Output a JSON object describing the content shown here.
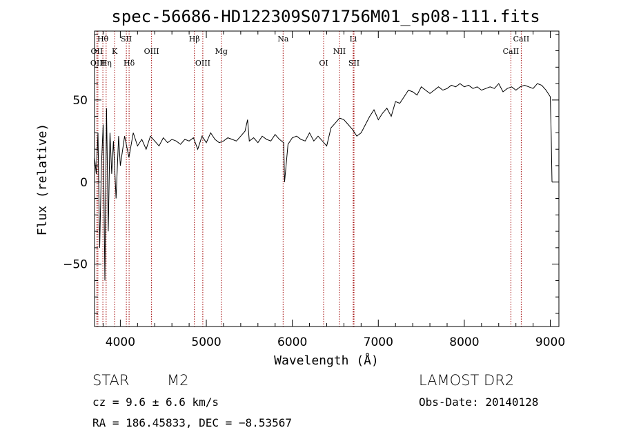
{
  "chart_data": {
    "type": "line",
    "title": "spec-56686-HD122309S071756M01_sp08-111.fits",
    "xlabel": "Wavelength (Å)",
    "ylabel": "Flux (relative)",
    "xlim": [
      3700,
      9100
    ],
    "ylim": [
      -88,
      92
    ],
    "x_ticks": [
      4000,
      5000,
      6000,
      7000,
      8000,
      9000
    ],
    "y_ticks": [
      -50,
      0,
      50
    ],
    "x_tick_labels": [
      "4000",
      "5000",
      "6000",
      "7000",
      "8000",
      "9000"
    ],
    "y_tick_labels": [
      "−50",
      "0",
      "50"
    ],
    "grid": false,
    "series": [
      {
        "x": [
          3700,
          3720,
          3740,
          3760,
          3780,
          3800,
          3820,
          3840,
          3860,
          3880,
          3900,
          3920,
          3950,
          3980,
          4000,
          4050,
          4100,
          4150,
          4200,
          4250,
          4300,
          4350,
          4400,
          4450,
          4500,
          4550,
          4600,
          4650,
          4700,
          4750,
          4800,
          4850,
          4900,
          4950,
          5000,
          5050,
          5100,
          5150,
          5200,
          5250,
          5300,
          5350,
          5400,
          5450,
          5480,
          5500,
          5550,
          5600,
          5650,
          5700,
          5750,
          5800,
          5850,
          5900,
          5910,
          5950,
          6000,
          6050,
          6100,
          6150,
          6200,
          6250,
          6300,
          6350,
          6400,
          6450,
          6500,
          6550,
          6600,
          6650,
          6700,
          6750,
          6800,
          6850,
          6900,
          6950,
          7000,
          7050,
          7100,
          7150,
          7200,
          7250,
          7300,
          7350,
          7400,
          7450,
          7500,
          7550,
          7600,
          7650,
          7700,
          7750,
          7800,
          7850,
          7900,
          7950,
          8000,
          8050,
          8100,
          8150,
          8200,
          8250,
          8300,
          8350,
          8400,
          8450,
          8500,
          8550,
          8600,
          8650,
          8700,
          8750,
          8800,
          8850,
          8900,
          8950,
          9000,
          9010,
          9020
        ],
        "y": [
          15,
          5,
          30,
          -40,
          10,
          35,
          -60,
          45,
          -30,
          30,
          5,
          25,
          -10,
          28,
          10,
          28,
          15,
          30,
          22,
          26,
          20,
          28,
          25,
          22,
          27,
          24,
          26,
          25,
          23,
          26,
          25,
          27,
          20,
          28,
          24,
          30,
          26,
          24,
          25,
          27,
          26,
          25,
          28,
          31,
          38,
          25,
          27,
          24,
          28,
          26,
          25,
          29,
          26,
          24,
          0,
          23,
          27,
          28,
          26,
          25,
          30,
          25,
          28,
          25,
          22,
          33,
          36,
          39,
          38,
          35,
          32,
          28,
          30,
          35,
          40,
          44,
          38,
          42,
          45,
          40,
          49,
          48,
          52,
          56,
          55,
          53,
          58,
          56,
          54,
          56,
          58,
          56,
          57,
          59,
          58,
          60,
          58,
          59,
          57,
          58,
          56,
          57,
          58,
          57,
          60,
          55,
          57,
          58,
          56,
          58,
          59,
          58,
          57,
          60,
          59,
          56,
          52,
          30,
          0
        ]
      }
    ],
    "spectral_lines": [
      {
        "label": "Hθ",
        "x": 3797,
        "row": 1
      },
      {
        "label": "OII",
        "x": 3727,
        "row": 2
      },
      {
        "label": "OIII",
        "x": 3739,
        "row": 3
      },
      {
        "label": "Hη",
        "x": 3835,
        "row": 3
      },
      {
        "label": "K",
        "x": 3934,
        "row": 2
      },
      {
        "label": "SII",
        "x": 4070,
        "row": 1
      },
      {
        "label": "Hδ",
        "x": 4102,
        "row": 3
      },
      {
        "label": "OIII",
        "x": 4363,
        "row": 2
      },
      {
        "label": "Hβ",
        "x": 4861,
        "row": 1
      },
      {
        "label": "OIII",
        "x": 4959,
        "row": 3
      },
      {
        "label": "Mg",
        "x": 5175,
        "row": 2
      },
      {
        "label": "Na",
        "x": 5893,
        "row": 1
      },
      {
        "label": "OI",
        "x": 6364,
        "row": 3
      },
      {
        "label": "NII",
        "x": 6548,
        "row": 2
      },
      {
        "label": "Li",
        "x": 6708,
        "row": 1
      },
      {
        "label": "SII",
        "x": 6717,
        "row": 3
      },
      {
        "label": "CaII",
        "x": 8542,
        "row": 2
      },
      {
        "label": "CaII",
        "x": 8662,
        "row": 1
      }
    ]
  },
  "info": {
    "object_class": "STAR",
    "subclass": "M2",
    "survey": "LAMOST DR2",
    "cz": "cz = 9.6 ± 6.6 km/s",
    "obs_date": "Obs-Date: 20140128",
    "coords": "RA = 186.45833, DEC =  −8.53567"
  }
}
